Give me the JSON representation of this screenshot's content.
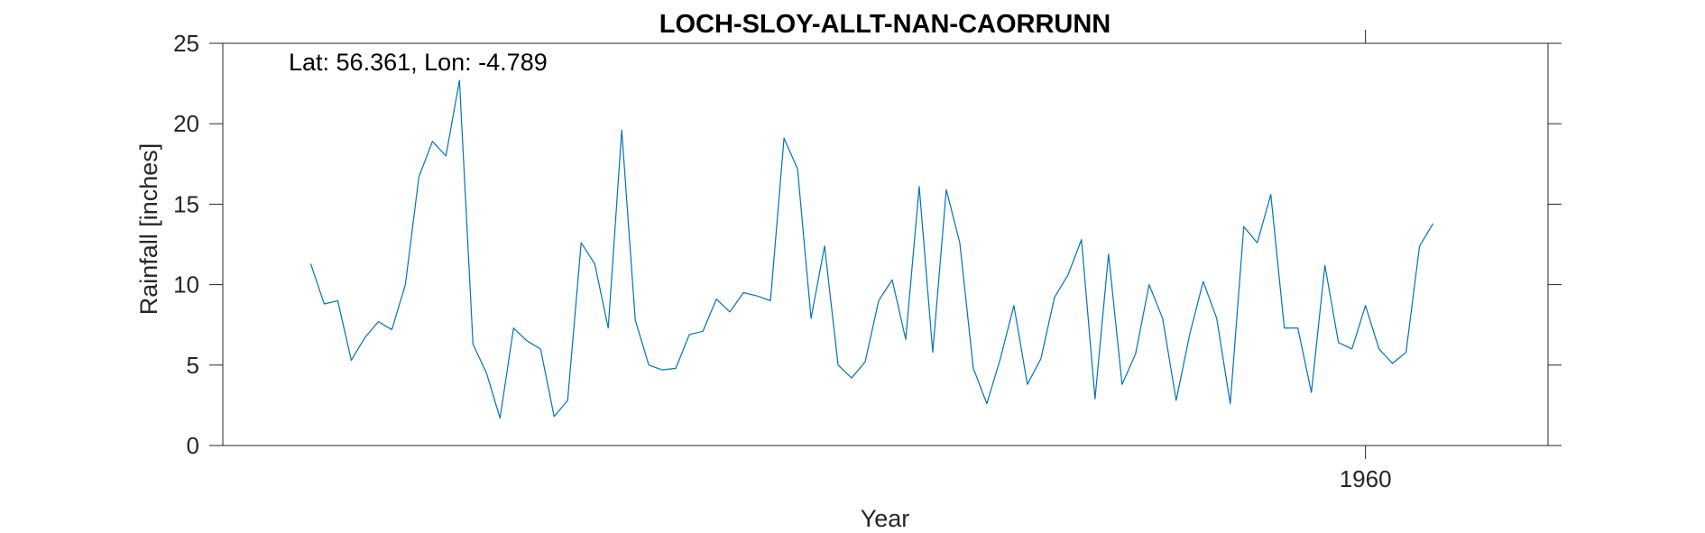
{
  "chart_data": {
    "type": "line",
    "title": "LOCH-SLOY-ALLT-NAN-CAORRUNN",
    "xlabel": "Year",
    "ylabel": "Rainfall [inches]",
    "annotation": "Lat: 56.361, Lon: -4.789",
    "xlim": [
      1875.5,
      1973.5
    ],
    "ylim": [
      0,
      25
    ],
    "x_ticks": [
      1960
    ],
    "y_ticks": [
      0,
      5,
      10,
      15,
      20,
      25
    ],
    "grid": false,
    "line_color": "#0072BD",
    "series": [
      {
        "x": [
          1882,
          1883,
          1884,
          1885,
          1886,
          1887,
          1888,
          1889,
          1890,
          1891,
          1892,
          1893,
          1894,
          1895,
          1896,
          1897,
          1898,
          1899,
          1900,
          1901,
          1902,
          1903,
          1904,
          1905,
          1906,
          1907,
          1908,
          1909,
          1910,
          1911,
          1912,
          1913,
          1914,
          1915,
          1916,
          1917,
          1918,
          1919,
          1920,
          1921,
          1922,
          1923,
          1924,
          1925,
          1926,
          1927,
          1928,
          1929,
          1930,
          1931,
          1932,
          1933,
          1934,
          1935,
          1936,
          1937,
          1938,
          1939,
          1940,
          1941,
          1942,
          1943,
          1944,
          1945,
          1946,
          1947,
          1948,
          1949,
          1950,
          1951,
          1952,
          1953,
          1954,
          1955,
          1956,
          1957,
          1958,
          1959,
          1960,
          1961,
          1962,
          1963,
          1964,
          1965
        ],
        "values": [
          11.3,
          8.8,
          9.0,
          5.3,
          6.7,
          7.7,
          7.2,
          10.0,
          16.7,
          18.9,
          18.0,
          22.7,
          6.3,
          4.5,
          1.7,
          7.3,
          6.5,
          6.0,
          1.8,
          2.8,
          12.6,
          11.3,
          7.3,
          19.6,
          7.8,
          5.0,
          4.7,
          4.8,
          6.9,
          7.1,
          9.1,
          8.3,
          9.5,
          9.3,
          9.0,
          19.1,
          17.2,
          7.9,
          12.4,
          5.0,
          4.2,
          5.2,
          9.0,
          10.3,
          6.6,
          16.1,
          5.8,
          15.9,
          12.6,
          4.8,
          2.6,
          5.4,
          8.7,
          3.8,
          5.4,
          9.2,
          10.6,
          12.8,
          2.9,
          11.9,
          3.8,
          5.7,
          10.0,
          7.9,
          2.8,
          6.9,
          10.2,
          7.9,
          2.6,
          13.6,
          12.6,
          15.6,
          7.3,
          7.3,
          3.3,
          11.2,
          6.4,
          6.0,
          8.7,
          6.0,
          5.1,
          5.8,
          12.4,
          13.8
        ]
      }
    ]
  }
}
